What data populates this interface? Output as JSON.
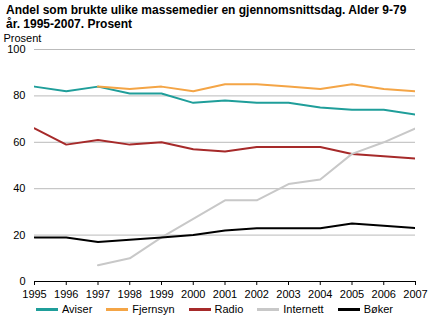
{
  "chart_data": {
    "type": "line",
    "title": "Andel som brukte ulike massemedier en gjennomsnittsdag. Alder 9-79 år. 1995-2007. Prosent",
    "y_label": "Prosent",
    "x": [
      1995,
      1996,
      1997,
      1998,
      1999,
      2000,
      2001,
      2002,
      2003,
      2004,
      2005,
      2006,
      2007
    ],
    "series": [
      {
        "name": "Aviser",
        "color": "#1f9e9a",
        "values": [
          84,
          82,
          84,
          81,
          81,
          77,
          78,
          77,
          77,
          75,
          74,
          74,
          72
        ]
      },
      {
        "name": "Fjernsyn",
        "color": "#f4a546",
        "values": [
          null,
          null,
          84,
          83,
          84,
          82,
          85,
          85,
          84,
          83,
          85,
          83,
          82
        ]
      },
      {
        "name": "Radio",
        "color": "#a62a2a",
        "values": [
          66,
          59,
          61,
          59,
          60,
          57,
          56,
          58,
          58,
          58,
          55,
          54,
          53
        ]
      },
      {
        "name": "Internett",
        "color": "#c8c8c8",
        "values": [
          null,
          null,
          7,
          10,
          19,
          27,
          35,
          35,
          42,
          44,
          55,
          60,
          66
        ]
      },
      {
        "name": "Bøker",
        "color": "#000000",
        "values": [
          19,
          19,
          17,
          18,
          19,
          20,
          22,
          23,
          23,
          23,
          25,
          24,
          23
        ]
      }
    ],
    "xlim": [
      1995,
      2007
    ],
    "xticks": [
      1995,
      1996,
      1997,
      1998,
      1999,
      2000,
      2001,
      2002,
      2003,
      2004,
      2005,
      2006,
      2007
    ],
    "ylim": [
      0,
      100
    ],
    "yticks": [
      0,
      20,
      40,
      60,
      80,
      100
    ],
    "grid": true,
    "legend": "bottom"
  }
}
